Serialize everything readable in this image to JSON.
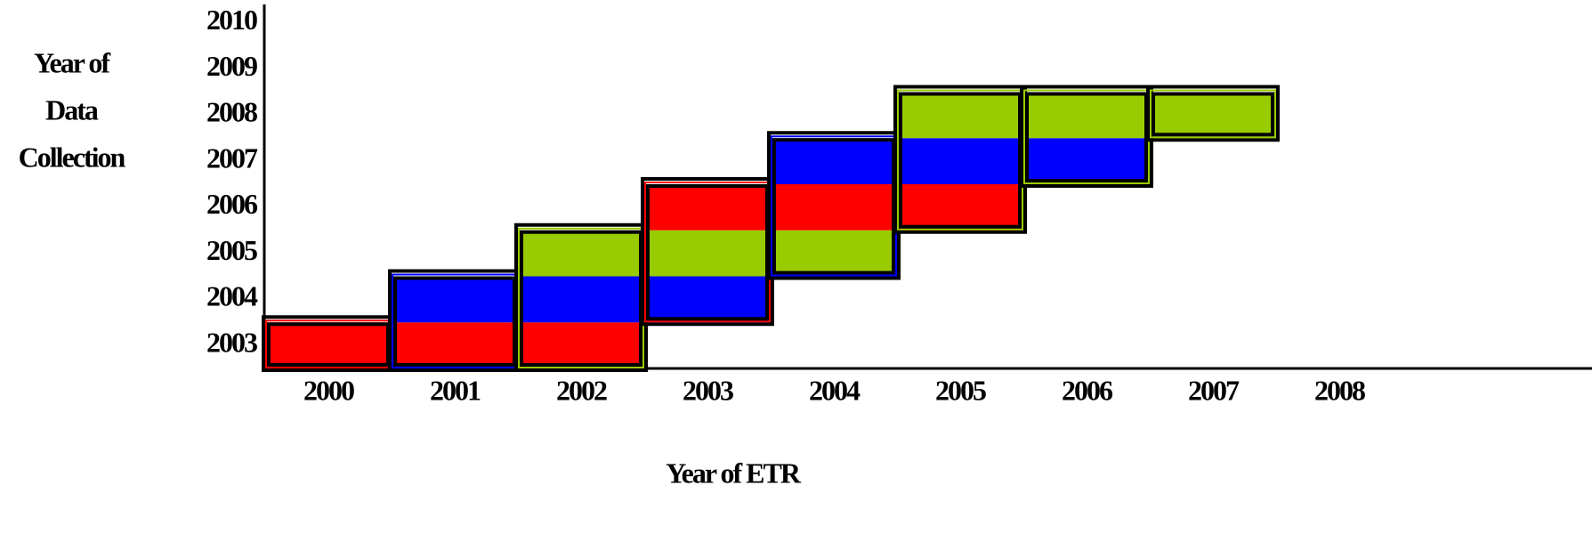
{
  "chart_data": {
    "type": "cell-grid",
    "x_label": "Year of  ETR",
    "y_label": [
      "Year of",
      "Data",
      "Collection"
    ],
    "xlim": [
      1999.5,
      2010
    ],
    "ylim": [
      2002.5,
      2010.5
    ],
    "xticks": [
      2000,
      2001,
      2002,
      2003,
      2004,
      2005,
      2006,
      2007,
      2008
    ],
    "yticks": [
      2003,
      2004,
      2005,
      2006,
      2007,
      2008,
      2009,
      2010
    ],
    "cells": [
      {
        "x": 2000,
        "y": 2003,
        "color": "#ff0000"
      },
      {
        "x": 2001,
        "y": 2003,
        "color": "#ff0000"
      },
      {
        "x": 2001,
        "y": 2004,
        "color": "#0000ff"
      },
      {
        "x": 2002,
        "y": 2003,
        "color": "#ff0000"
      },
      {
        "x": 2002,
        "y": 2004,
        "color": "#0000ff"
      },
      {
        "x": 2002,
        "y": 2005,
        "color": "#99cc00"
      },
      {
        "x": 2003,
        "y": 2004,
        "color": "#0000ff"
      },
      {
        "x": 2003,
        "y": 2005,
        "color": "#99cc00"
      },
      {
        "x": 2003,
        "y": 2006,
        "color": "#ff0000"
      },
      {
        "x": 2004,
        "y": 2005,
        "color": "#99cc00"
      },
      {
        "x": 2004,
        "y": 2006,
        "color": "#ff0000"
      },
      {
        "x": 2004,
        "y": 2007,
        "color": "#0000ff"
      },
      {
        "x": 2005,
        "y": 2006,
        "color": "#ff0000"
      },
      {
        "x": 2005,
        "y": 2007,
        "color": "#0000ff"
      },
      {
        "x": 2005,
        "y": 2008,
        "color": "#99cc00"
      },
      {
        "x": 2006,
        "y": 2007,
        "color": "#0000ff"
      },
      {
        "x": 2006,
        "y": 2008,
        "color": "#99cc00"
      },
      {
        "x": 2007,
        "y": 2008,
        "color": "#99cc00"
      }
    ]
  }
}
